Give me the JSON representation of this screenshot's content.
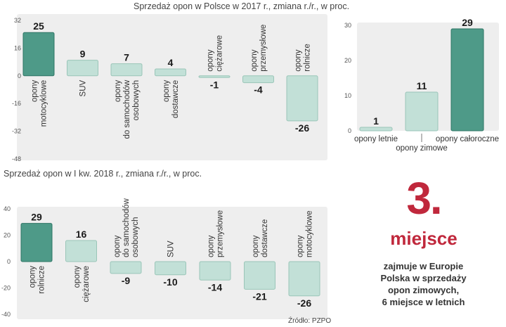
{
  "chart_data": [
    {
      "type": "bar",
      "title": "Sprzedaż opon w Polsce w 2017 r., zmiana r./r., w proc.",
      "categories": [
        [
          "opony",
          "motocyklowe"
        ],
        [
          "SUV"
        ],
        [
          "opony",
          "do samochodów",
          "osobowych"
        ],
        [
          "opony",
          "dostawcze"
        ],
        [
          "opony",
          "ciężarowe"
        ],
        [
          "opony",
          "przemysłowe"
        ],
        [
          "opony",
          "rolnicze"
        ]
      ],
      "values": [
        25,
        9,
        7,
        4,
        -1,
        -4,
        -26
      ],
      "value_labels": [
        "25",
        "9",
        "7",
        "4",
        "-1",
        "-4",
        "-26"
      ],
      "highlight_index": 0,
      "ylim": [
        -48,
        32
      ],
      "yticks": [
        -48,
        -32,
        -16,
        0,
        16,
        32
      ],
      "ytick_labels": [
        "-48",
        "-32",
        "-16",
        "0",
        "16",
        "32"
      ],
      "grid": false
    },
    {
      "type": "bar",
      "title": "",
      "categories": [
        [
          "opony letnie"
        ],
        [
          "opony zimowe"
        ],
        [
          "opony całoroczne"
        ]
      ],
      "values": [
        1,
        11,
        29
      ],
      "value_labels": [
        "1",
        "11",
        "29"
      ],
      "highlight_index": 2,
      "ylim": [
        0,
        30
      ],
      "yticks": [
        0,
        10,
        20,
        30
      ],
      "ytick_labels": [
        "0",
        "10",
        "20",
        "30"
      ],
      "grid": false
    },
    {
      "type": "bar",
      "title": "Sprzedaż opon w I kw. 2018 r., zmiana r./r., w proc.",
      "categories": [
        [
          "opony",
          "rolnicze"
        ],
        [
          "opony",
          "ciężarowe"
        ],
        [
          "opony",
          "do samochodów",
          "osobowych"
        ],
        [
          "SUV"
        ],
        [
          "opony",
          "przemysłowe"
        ],
        [
          "opony",
          "dostawcze"
        ],
        [
          "opony",
          "motocyklowe"
        ]
      ],
      "values": [
        29,
        16,
        -9,
        -10,
        -14,
        -21,
        -26
      ],
      "value_labels": [
        "29",
        "16",
        "-9",
        "-10",
        "-14",
        "-21",
        "-26"
      ],
      "highlight_index": 0,
      "ylim": [
        -40,
        40
      ],
      "yticks": [
        -40,
        -20,
        0,
        20,
        40
      ],
      "ytick_labels": [
        "-40",
        "-20",
        "0",
        "20",
        "40"
      ],
      "grid": false
    }
  ],
  "colors": {
    "highlight_fill": "#4e9a88",
    "highlight_stroke": "#2f7565",
    "bar_fill": "#c2e0d7",
    "bar_stroke": "#9ac5b8",
    "panel_bg": "#eeeeee",
    "accent_red": "#c0283c"
  },
  "infobox": {
    "rank_number": "3.",
    "rank_word": "miejsce",
    "description": "zajmuje w Europie\nPolska w sprzedaży\nopon zimowych,\n6 miejsce w letnich"
  },
  "source": "Źródło: PZPO"
}
